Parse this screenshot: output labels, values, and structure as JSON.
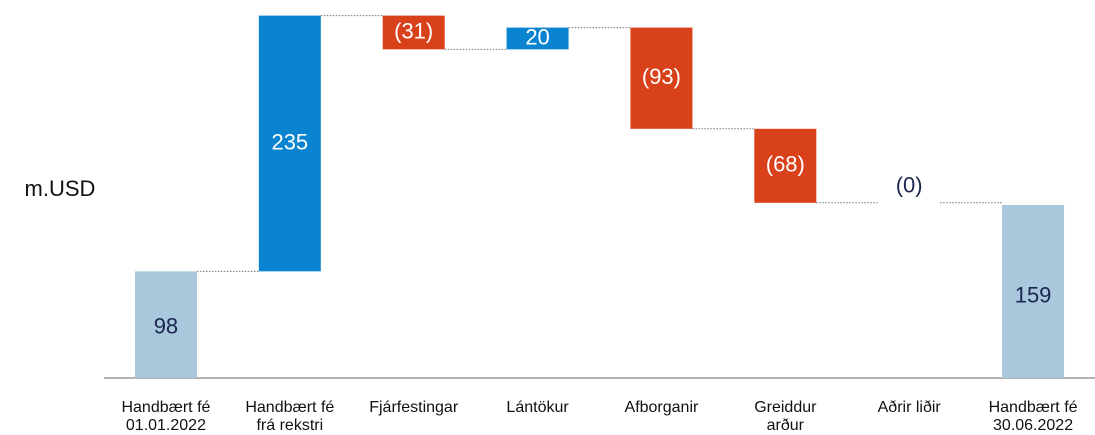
{
  "chart_data": {
    "type": "waterfall",
    "y_label": "m.USD",
    "categories": [
      [
        "Handbært fé",
        "01.01.2022"
      ],
      [
        "Handbært fé",
        "frá rekstri"
      ],
      [
        "Fjárfestingar"
      ],
      [
        "Lántökur"
      ],
      [
        "Afborganir"
      ],
      [
        "Greiddur",
        "arður"
      ],
      [
        "Aðrir liðir"
      ],
      [
        "Handbært fé",
        "30.06.2022"
      ]
    ],
    "measures": [
      "absolute",
      "relative",
      "relative",
      "relative",
      "relative",
      "relative",
      "relative",
      "total"
    ],
    "values": [
      98,
      235,
      -31,
      20,
      -93,
      -68,
      0,
      159
    ],
    "value_labels": [
      "98",
      "235",
      "(31)",
      "20",
      "(93)",
      "(68)",
      "(0)",
      "159"
    ],
    "colors": {
      "absolute": "#a9c8dc",
      "increase": "#0a84d0",
      "decrease": "#d9411b"
    },
    "ylim": [
      0,
      340
    ]
  }
}
